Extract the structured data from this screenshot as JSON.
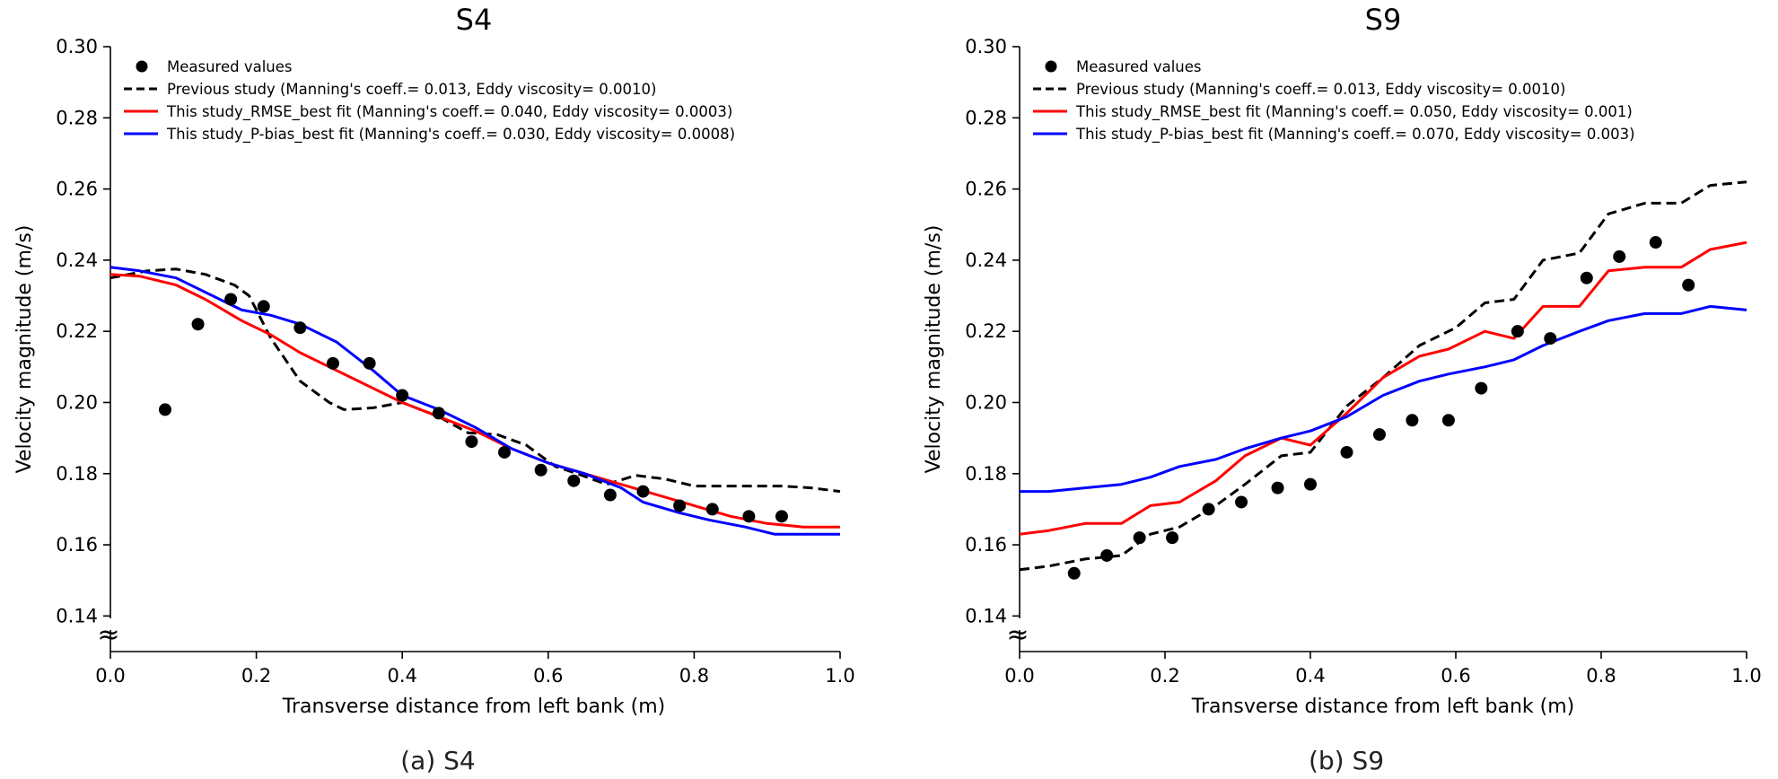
{
  "chart_data": [
    {
      "type": "line",
      "title": "S4",
      "caption": "(a) S4",
      "xlabel": "Transverse distance from left bank (m)",
      "ylabel": "Velocity magnitude (m/s)",
      "xlim": [
        0.0,
        1.0
      ],
      "ylim": [
        0.13,
        0.3
      ],
      "xticks": [
        0.0,
        0.2,
        0.4,
        0.6,
        0.8,
        1.0
      ],
      "xtick_labels": [
        "0.0",
        "0.2",
        "0.4",
        "0.6",
        "0.8",
        "1.0"
      ],
      "yticks": [
        0.14,
        0.16,
        0.18,
        0.2,
        0.22,
        0.24,
        0.26,
        0.28,
        0.3
      ],
      "ytick_labels": [
        "0.14",
        "0.16",
        "0.18",
        "0.20",
        "0.22",
        "0.24",
        "0.26",
        "0.28",
        "0.30"
      ],
      "axis_break_symbol": "≈",
      "legend_position": "top-left",
      "series": [
        {
          "name": "Measured values",
          "style": "markers",
          "color": "#000000",
          "x": [
            0.075,
            0.12,
            0.165,
            0.21,
            0.26,
            0.305,
            0.355,
            0.4,
            0.45,
            0.495,
            0.54,
            0.59,
            0.635,
            0.685,
            0.73,
            0.78,
            0.825,
            0.875,
            0.92
          ],
          "y": [
            0.198,
            0.222,
            0.229,
            0.227,
            0.221,
            0.211,
            0.211,
            0.202,
            0.197,
            0.189,
            0.186,
            0.181,
            0.178,
            0.174,
            0.175,
            0.171,
            0.17,
            0.168,
            0.168
          ]
        },
        {
          "name": "Previous study (Manning's coeff.= 0.013, Eddy viscosity= 0.0010)",
          "style": "dashed",
          "color": "#000000",
          "x": [
            0.0,
            0.05,
            0.09,
            0.13,
            0.17,
            0.19,
            0.22,
            0.26,
            0.3,
            0.32,
            0.36,
            0.4,
            0.45,
            0.49,
            0.53,
            0.57,
            0.61,
            0.64,
            0.68,
            0.72,
            0.76,
            0.8,
            0.84,
            0.88,
            0.92,
            0.96,
            1.0
          ],
          "y": [
            0.235,
            0.237,
            0.2375,
            0.236,
            0.233,
            0.23,
            0.218,
            0.206,
            0.2,
            0.198,
            0.1985,
            0.2,
            0.196,
            0.1915,
            0.191,
            0.188,
            0.182,
            0.18,
            0.177,
            0.1795,
            0.1785,
            0.1765,
            0.1765,
            0.1765,
            0.1765,
            0.176,
            0.175
          ]
        },
        {
          "name": "This study_RMSE_best fit (Manning's coeff.= 0.040, Eddy viscosity= 0.0003)",
          "style": "solid",
          "color": "#ff0000",
          "x": [
            0.0,
            0.04,
            0.09,
            0.13,
            0.18,
            0.22,
            0.26,
            0.3,
            0.35,
            0.4,
            0.45,
            0.5,
            0.55,
            0.6,
            0.65,
            0.7,
            0.75,
            0.8,
            0.85,
            0.9,
            0.95,
            1.0
          ],
          "y": [
            0.236,
            0.2355,
            0.233,
            0.229,
            0.223,
            0.219,
            0.214,
            0.21,
            0.205,
            0.2,
            0.196,
            0.192,
            0.187,
            0.183,
            0.18,
            0.177,
            0.174,
            0.171,
            0.168,
            0.166,
            0.165,
            0.165
          ]
        },
        {
          "name": "This study_P-bias_best fit (Manning's coeff.= 0.030, Eddy viscosity= 0.0008)",
          "style": "solid",
          "color": "#0000ff",
          "x": [
            0.0,
            0.04,
            0.09,
            0.13,
            0.18,
            0.22,
            0.26,
            0.31,
            0.36,
            0.4,
            0.45,
            0.5,
            0.55,
            0.6,
            0.65,
            0.7,
            0.73,
            0.78,
            0.82,
            0.87,
            0.91,
            0.96,
            1.0
          ],
          "y": [
            0.238,
            0.237,
            0.235,
            0.231,
            0.226,
            0.2245,
            0.222,
            0.217,
            0.209,
            0.202,
            0.198,
            0.193,
            0.187,
            0.183,
            0.18,
            0.176,
            0.172,
            0.169,
            0.167,
            0.165,
            0.163,
            0.163,
            0.163
          ]
        }
      ]
    },
    {
      "type": "line",
      "title": "S9",
      "caption": "(b) S9",
      "xlabel": "Transverse distance from left bank (m)",
      "ylabel": "Velocity magnitude (m/s)",
      "xlim": [
        0.0,
        1.0
      ],
      "ylim": [
        0.13,
        0.3
      ],
      "xticks": [
        0.0,
        0.2,
        0.4,
        0.6,
        0.8,
        1.0
      ],
      "xtick_labels": [
        "0.0",
        "0.2",
        "0.4",
        "0.6",
        "0.8",
        "1.0"
      ],
      "yticks": [
        0.14,
        0.16,
        0.18,
        0.2,
        0.22,
        0.24,
        0.26,
        0.28,
        0.3
      ],
      "ytick_labels": [
        "0.14",
        "0.16",
        "0.18",
        "0.20",
        "0.22",
        "0.24",
        "0.26",
        "0.28",
        "0.30"
      ],
      "axis_break_symbol": "≈",
      "legend_position": "top-left",
      "series": [
        {
          "name": "Measured values",
          "style": "markers",
          "color": "#000000",
          "x": [
            0.075,
            0.12,
            0.165,
            0.21,
            0.26,
            0.305,
            0.355,
            0.4,
            0.45,
            0.495,
            0.54,
            0.59,
            0.635,
            0.685,
            0.73,
            0.78,
            0.825,
            0.875,
            0.92
          ],
          "y": [
            0.152,
            0.157,
            0.162,
            0.162,
            0.17,
            0.172,
            0.176,
            0.177,
            0.186,
            0.191,
            0.195,
            0.195,
            0.204,
            0.22,
            0.218,
            0.235,
            0.241,
            0.245,
            0.233
          ]
        },
        {
          "name": "Previous study (Manning's coeff.= 0.013, Eddy viscosity= 0.0010)",
          "style": "dashed",
          "color": "#000000",
          "x": [
            0.0,
            0.04,
            0.09,
            0.14,
            0.18,
            0.22,
            0.27,
            0.31,
            0.36,
            0.4,
            0.45,
            0.5,
            0.55,
            0.6,
            0.64,
            0.68,
            0.72,
            0.77,
            0.81,
            0.86,
            0.91,
            0.95,
            1.0
          ],
          "y": [
            0.153,
            0.154,
            0.156,
            0.157,
            0.163,
            0.165,
            0.171,
            0.177,
            0.185,
            0.186,
            0.199,
            0.207,
            0.216,
            0.221,
            0.228,
            0.229,
            0.24,
            0.242,
            0.253,
            0.256,
            0.256,
            0.261,
            0.262
          ]
        },
        {
          "name": "This study_RMSE_best fit (Manning's coeff.= 0.050, Eddy viscosity= 0.001)",
          "style": "solid",
          "color": "#ff0000",
          "x": [
            0.0,
            0.04,
            0.09,
            0.14,
            0.18,
            0.22,
            0.27,
            0.31,
            0.36,
            0.4,
            0.45,
            0.5,
            0.55,
            0.59,
            0.64,
            0.68,
            0.72,
            0.77,
            0.81,
            0.86,
            0.91,
            0.95,
            1.0
          ],
          "y": [
            0.163,
            0.164,
            0.166,
            0.166,
            0.171,
            0.172,
            0.178,
            0.185,
            0.19,
            0.188,
            0.197,
            0.207,
            0.213,
            0.215,
            0.22,
            0.218,
            0.227,
            0.227,
            0.237,
            0.238,
            0.238,
            0.243,
            0.245
          ]
        },
        {
          "name": "This study_P-bias_best fit (Manning's coeff.= 0.070, Eddy viscosity= 0.003)",
          "style": "solid",
          "color": "#0000ff",
          "x": [
            0.0,
            0.04,
            0.09,
            0.14,
            0.18,
            0.22,
            0.27,
            0.31,
            0.36,
            0.4,
            0.45,
            0.5,
            0.55,
            0.59,
            0.64,
            0.68,
            0.72,
            0.77,
            0.81,
            0.86,
            0.91,
            0.95,
            1.0
          ],
          "y": [
            0.175,
            0.175,
            0.176,
            0.177,
            0.179,
            0.182,
            0.184,
            0.187,
            0.19,
            0.192,
            0.196,
            0.202,
            0.206,
            0.208,
            0.21,
            0.212,
            0.216,
            0.22,
            0.223,
            0.225,
            0.225,
            0.227,
            0.226
          ]
        }
      ]
    }
  ]
}
